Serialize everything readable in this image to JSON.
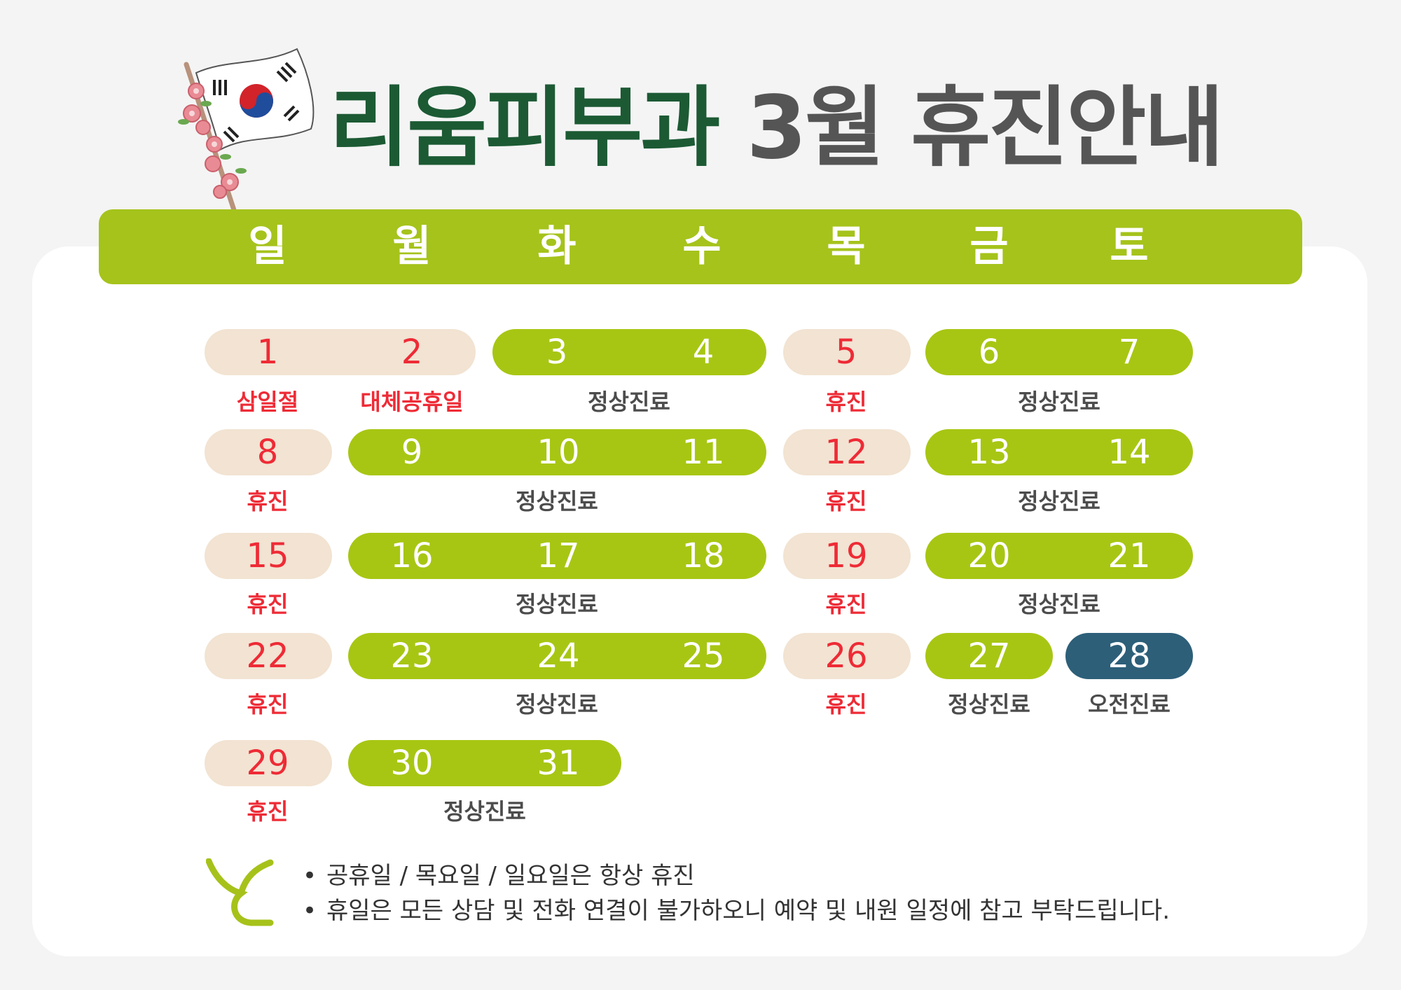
{
  "title": {
    "clinic": "리움피부과",
    "rest": "3월 휴진안내"
  },
  "weekdays": [
    "일",
    "월",
    "화",
    "수",
    "목",
    "금",
    "토"
  ],
  "days": [
    {
      "day": "1",
      "label": "삼일절"
    },
    {
      "day": "2",
      "label": "대체공휴일"
    },
    {
      "day": "3"
    },
    {
      "day": "4"
    },
    {
      "day": "5",
      "label": "휴진"
    },
    {
      "day": "6"
    },
    {
      "day": "7"
    },
    {
      "day": "8",
      "label": "휴진"
    },
    {
      "day": "9"
    },
    {
      "day": "10"
    },
    {
      "day": "11"
    },
    {
      "day": "12",
      "label": "휴진"
    },
    {
      "day": "13"
    },
    {
      "day": "14"
    },
    {
      "day": "15",
      "label": "휴진"
    },
    {
      "day": "16"
    },
    {
      "day": "17"
    },
    {
      "day": "18"
    },
    {
      "day": "19",
      "label": "휴진"
    },
    {
      "day": "20"
    },
    {
      "day": "21"
    },
    {
      "day": "22",
      "label": "휴진"
    },
    {
      "day": "23"
    },
    {
      "day": "24"
    },
    {
      "day": "25"
    },
    {
      "day": "26",
      "label": "휴진"
    },
    {
      "day": "27",
      "label": "정상진료"
    },
    {
      "day": "28",
      "label": "오전진료"
    },
    {
      "day": "29",
      "label": "휴진"
    },
    {
      "day": "30"
    },
    {
      "day": "31"
    }
  ],
  "group_labels": [
    "정상진료",
    "정상진료",
    "정상진료",
    "정상진료",
    "정상진료",
    "정상진료",
    "정상진료",
    "정상진료"
  ],
  "notes": [
    "공휴일 / 목요일 / 일요일은 항상 휴진",
    "휴일은 모든 상담 및 전화 연결이 불가하오니 예약 및 내원 일정에 참고 부탁드립니다."
  ],
  "colors": {
    "title_green": "#1c5a34",
    "title_gray": "#555555",
    "week_bar": "#a5c31b",
    "working_pill": "#a7c613",
    "rest_pill": "#f2e3d2",
    "morning_pill": "#2d5f79",
    "rest_text": "#ee2b36"
  },
  "icons": [
    "korean-flag-icon",
    "sprout-logo-icon"
  ]
}
